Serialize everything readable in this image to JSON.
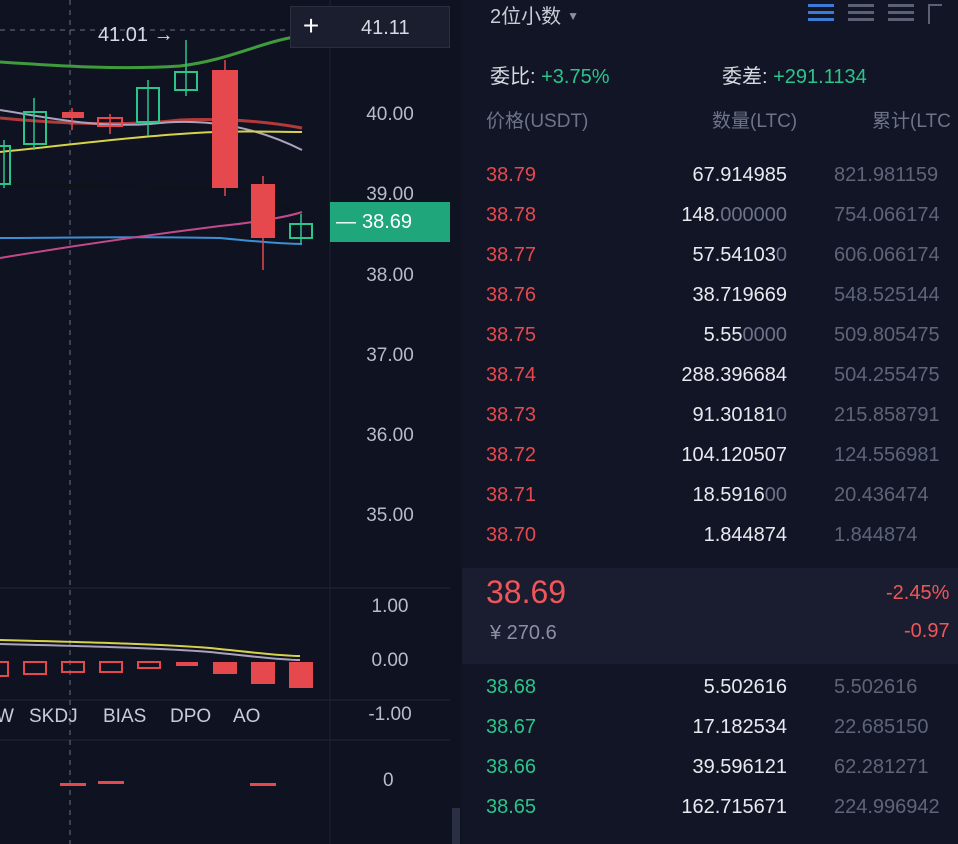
{
  "chart": {
    "y_axis": [
      "41.11",
      "40.00",
      "39.00",
      "38.00",
      "37.00",
      "36.00",
      "35.00"
    ],
    "high_label": "41.01 →",
    "current_price": "38.69",
    "current_dash": "—",
    "plus_symbol": "+",
    "top_price": "41.11",
    "sub_axis": [
      "1.00",
      "0.00",
      "-1.00"
    ],
    "sub2_axis": "0",
    "indicator_tabs": [
      "W",
      "SKDJ",
      "BIAS",
      "DPO",
      "AO"
    ]
  },
  "book": {
    "precision_label": "2位小数",
    "ratio_label": "委比:",
    "ratio_value": "+3.75%",
    "diff_label": "委差:",
    "diff_value": "+291.1134",
    "headers": {
      "price": "价格(USDT)",
      "qty": "数量(LTC)",
      "cum": "累计(LTC"
    },
    "asks": [
      {
        "price": "38.79",
        "qty": "67.914985",
        "qty_dim": "",
        "cum": "821.981159"
      },
      {
        "price": "38.78",
        "qty": "148.",
        "qty_dim": "000000",
        "cum": "754.066174"
      },
      {
        "price": "38.77",
        "qty": "57.54103",
        "qty_dim": "0",
        "cum": "606.066174"
      },
      {
        "price": "38.76",
        "qty": "38.719669",
        "qty_dim": "",
        "cum": "548.525144"
      },
      {
        "price": "38.75",
        "qty": "5.55",
        "qty_dim": "0000",
        "cum": "509.805475"
      },
      {
        "price": "38.74",
        "qty": "288.396684",
        "qty_dim": "",
        "cum": "504.255475"
      },
      {
        "price": "38.73",
        "qty": "91.30181",
        "qty_dim": "0",
        "cum": "215.858791"
      },
      {
        "price": "38.72",
        "qty": "104.120507",
        "qty_dim": "",
        "cum": "124.556981"
      },
      {
        "price": "38.71",
        "qty": "18.5916",
        "qty_dim": "00",
        "cum": "20.436474"
      },
      {
        "price": "38.70",
        "qty": "1.844874",
        "qty_dim": "",
        "cum": "1.844874"
      }
    ],
    "mid": {
      "price": "38.69",
      "cny": "¥ 270.6",
      "change_pct": "-2.45%",
      "change_amt": "-0.97"
    },
    "bids": [
      {
        "price": "38.68",
        "qty": "5.502616",
        "qty_dim": "",
        "cum": "5.502616"
      },
      {
        "price": "38.67",
        "qty": "17.182534",
        "qty_dim": "",
        "cum": "22.685150"
      },
      {
        "price": "38.66",
        "qty": "39.596121",
        "qty_dim": "",
        "cum": "62.281271"
      },
      {
        "price": "38.65",
        "qty": "162.715671",
        "qty_dim": "",
        "cum": "224.996942"
      }
    ]
  }
}
